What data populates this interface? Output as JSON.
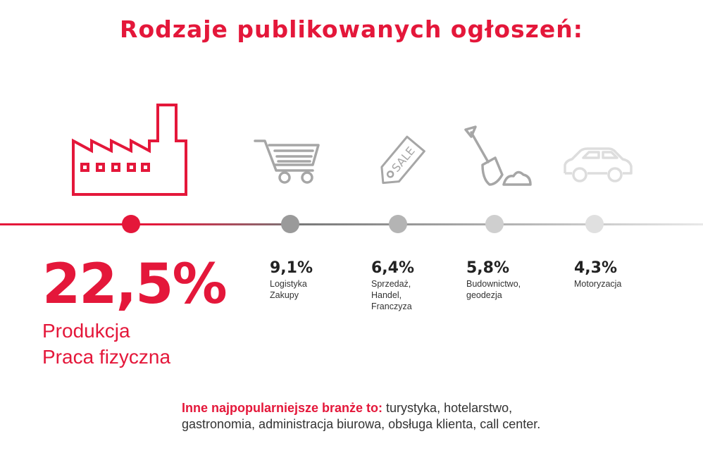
{
  "title": "Rodzaje publikowanych ogłoszeń:",
  "chart_data": {
    "type": "table",
    "title": "Rodzaje publikowanych ogłoszeń:",
    "unit": "%",
    "categories": [
      [
        "Produkcja",
        "Praca fizyczna"
      ],
      [
        "Logistyka",
        "Zakupy"
      ],
      [
        "Sprzedaż,",
        "Handel,",
        "Franczyza"
      ],
      [
        "Budownictwo,",
        "geodezja"
      ],
      [
        "Motoryzacja"
      ]
    ],
    "values": [
      22.5,
      9.1,
      6.4,
      5.8,
      4.3
    ],
    "value_labels": [
      "22,5%",
      "9,1%",
      "6,4%",
      "5,8%",
      "4,3%"
    ],
    "icons": [
      "factory-icon",
      "shopping-cart-icon",
      "sale-tag-icon",
      "shovel-icon",
      "car-icon"
    ]
  },
  "colors": {
    "accent": "#e4173a",
    "dots": [
      "#e4173a",
      "#9a9a9a",
      "#b4b4b4",
      "#cfcfcf",
      "#e0e0e0"
    ],
    "line_start": "#e4173a",
    "line_mid": "#777777",
    "line_end": "#e8e8e8"
  },
  "footer": {
    "lead": "Inne najpopularniejsze branże to:",
    "text": " turystyka, hotelarstwo, gastronomia, administracja biurowa, obsługa klienta, call center."
  }
}
